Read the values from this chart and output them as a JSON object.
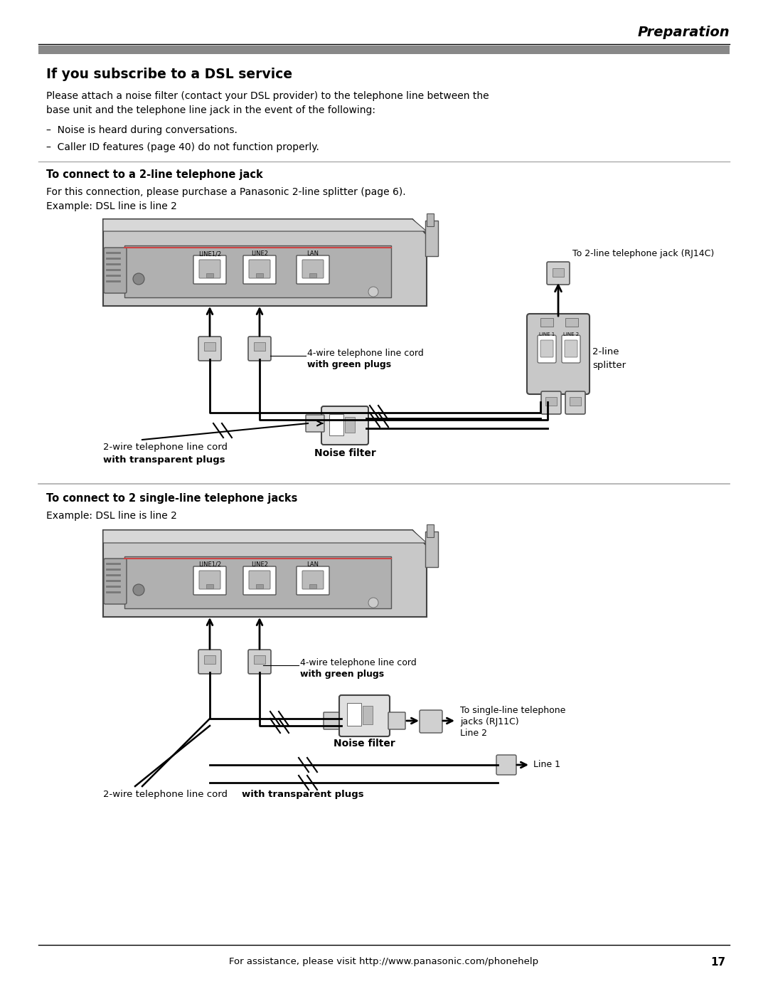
{
  "bg_color": "#ffffff",
  "page_width": 10.8,
  "page_height": 13.97,
  "header_text": "Preparation",
  "section_title": "If you subscribe to a DSL service",
  "body_text_1a": "Please attach a noise filter (contact your DSL provider) to the telephone line between the",
  "body_text_1b": "base unit and the telephone line jack in the event of the following:",
  "bullet_1": "–  Noise is heard during conversations.",
  "bullet_2": "–  Caller ID features (page 40) do not function properly.",
  "sub1_title": "To connect to a 2-line telephone jack",
  "sub1_body1": "For this connection, please purchase a Panasonic 2-line splitter (page 6).",
  "sub1_body2": "Example: DSL line is line 2",
  "sub2_title": "To connect to 2 single-line telephone jacks",
  "sub2_body": "Example: DSL line is line 2",
  "footer_text": "For assistance, please visit http://www.panasonic.com/phonehelp",
  "footer_page": "17",
  "d1_rj14c": "To 2-line telephone jack (RJ14C)",
  "d1_2line": "2-line",
  "d1_splitter": "splitter",
  "d1_4wire": "4-wire telephone line cord",
  "d1_4wire_b": "with green plugs",
  "d1_2wire": "2-wire telephone line cord",
  "d1_2wire_b": "with transparent plugs",
  "d1_noise": "Noise filter",
  "d2_4wire": "4-wire telephone line cord",
  "d2_4wire_b": "with green plugs",
  "d2_single1": "To single-line telephone",
  "d2_single2": "jacks (RJ11C)",
  "d2_line2": "Line 2",
  "d2_line1": "Line 1",
  "d2_noise": "Noise filter",
  "d2_2wire_reg": "2-wire telephone line cord ",
  "d2_2wire_b": "with transparent plugs",
  "gray_bar_color": "#888888",
  "sep_color": "#aaaaaa",
  "device_body": "#c8c8c8",
  "device_panel": "#b0b0b0",
  "device_dark": "#606060",
  "port_bg": "#e8e8e8",
  "plug_color": "#d0d0d0",
  "noise_filter_color": "#e0e0e0"
}
